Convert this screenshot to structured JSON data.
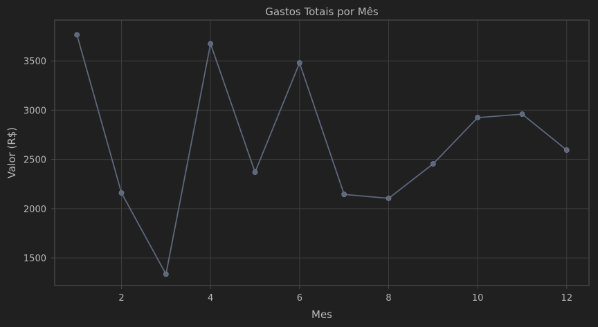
{
  "chart_data": {
    "type": "line",
    "title": "Gastos Totais por Mês",
    "xlabel": "Mes",
    "ylabel": "Valor (R$)",
    "x": [
      1,
      2,
      3,
      4,
      5,
      6,
      7,
      8,
      9,
      10,
      11,
      12
    ],
    "series": [
      {
        "values": [
          3765,
          2160,
          1335,
          3675,
          2370,
          3480,
          2145,
          2105,
          2455,
          2925,
          2960,
          2595
        ],
        "color": "#5d687e"
      }
    ],
    "xlim": [
      0.5,
      12.5
    ],
    "ylim": [
      1220,
      3915
    ],
    "x_ticks": [
      2,
      4,
      6,
      8,
      10,
      12
    ],
    "y_ticks": [
      1500,
      2000,
      2500,
      3000,
      3500
    ],
    "grid": true,
    "marker": "circle",
    "colors": {
      "background": "#202020",
      "grid": "#3d3d3d",
      "frame": "#4a4a4a",
      "text": "#b8b8b8"
    }
  }
}
